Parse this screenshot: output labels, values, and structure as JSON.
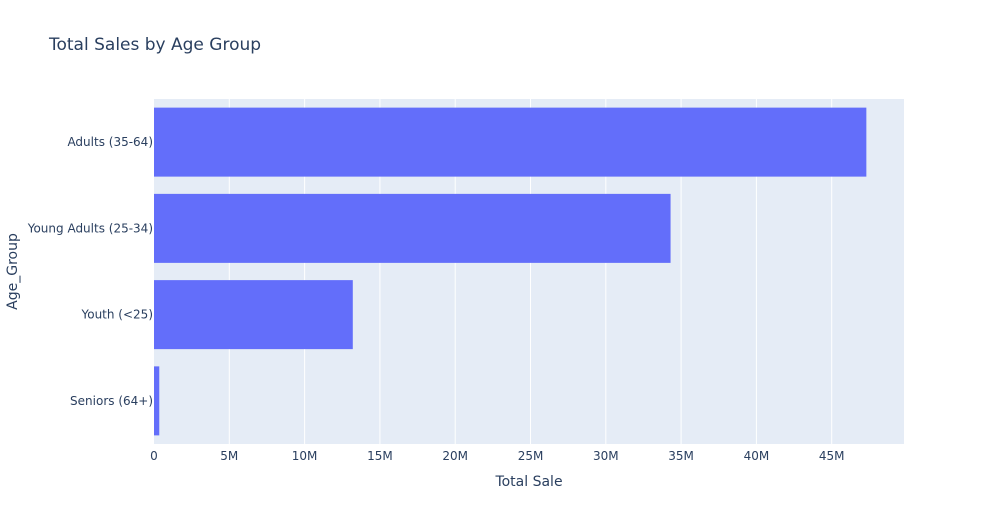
{
  "chart_data": {
    "type": "bar",
    "orientation": "horizontal",
    "title": "Total Sales by Age Group",
    "xlabel": "Total Sale",
    "ylabel": "Age_Group",
    "categories": [
      "Adults (35-64)",
      "Young Adults (25-34)",
      "Youth (<25)",
      "Seniors (64+)"
    ],
    "values": [
      47300000,
      34300000,
      13200000,
      350000
    ],
    "xlim": [
      0,
      49800000
    ],
    "xticks": [
      0,
      5000000,
      10000000,
      15000000,
      20000000,
      25000000,
      30000000,
      35000000,
      40000000,
      45000000
    ],
    "xtick_labels": [
      "0",
      "5M",
      "10M",
      "15M",
      "20M",
      "25M",
      "30M",
      "35M",
      "40M",
      "45M"
    ],
    "grid": true,
    "colors": {
      "bar": "#636efa",
      "plot_bg": "#e5ecf6",
      "grid": "#ffffff",
      "text": "#2a3f5f"
    }
  }
}
